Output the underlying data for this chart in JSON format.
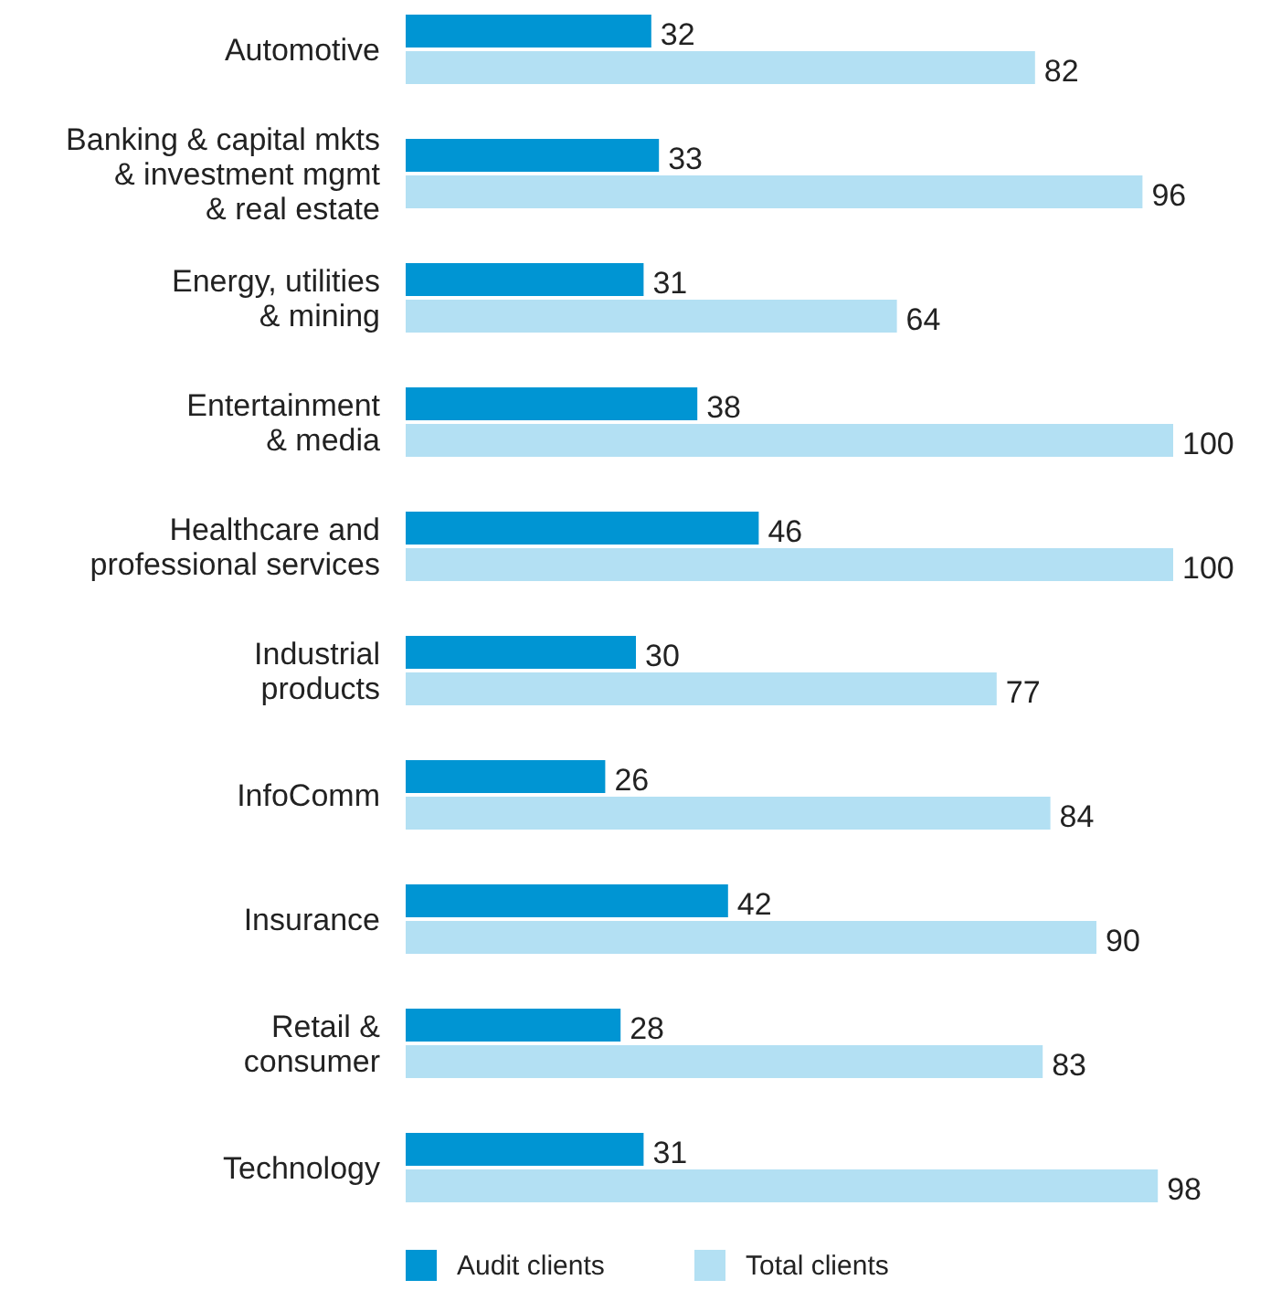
{
  "chart_data": {
    "type": "bar",
    "orientation": "horizontal",
    "categories": [
      "Automotive",
      "Banking & capital mkts\n& investment mgmt\n& real estate",
      "Energy, utilities\n& mining",
      "Entertainment\n& media",
      "Healthcare and\nprofessional services",
      "Industrial\nproducts",
      "InfoComm",
      "Insurance",
      "Retail &\nconsumer",
      "Technology"
    ],
    "series": [
      {
        "name": "Audit clients",
        "color": "#0095d3",
        "values": [
          32,
          33,
          31,
          38,
          46,
          30,
          26,
          42,
          28,
          31
        ]
      },
      {
        "name": "Total clients",
        "color": "#b3e0f3",
        "values": [
          82,
          96,
          64,
          100,
          100,
          77,
          84,
          90,
          83,
          98
        ]
      }
    ],
    "data_labels": true,
    "legend": "bottom"
  }
}
